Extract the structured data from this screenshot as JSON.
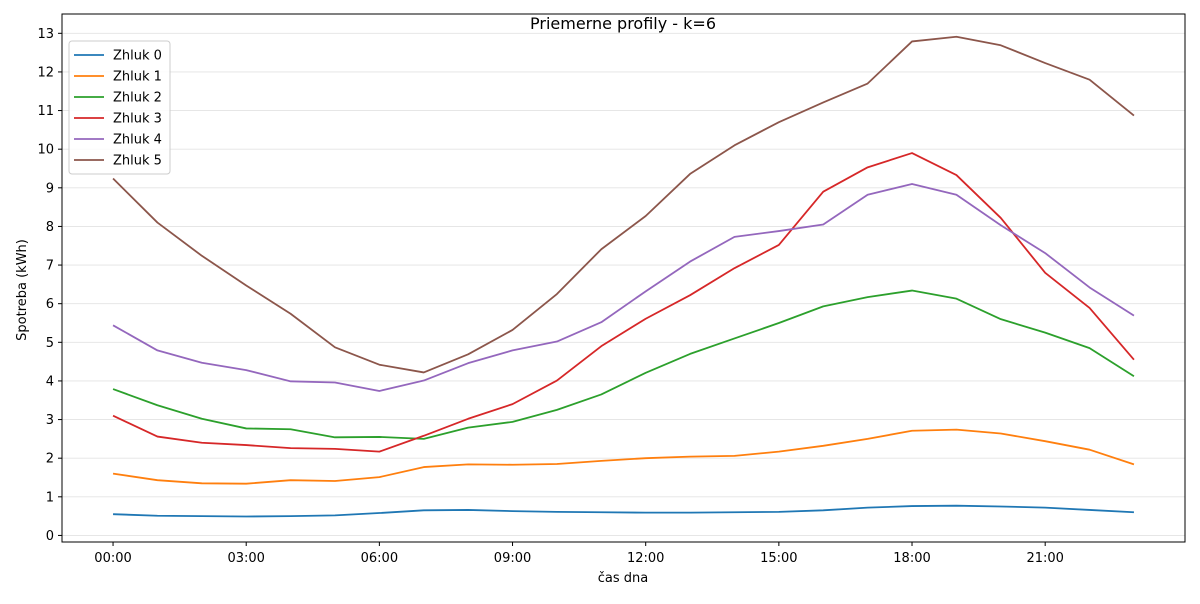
{
  "chart_data": {
    "type": "line",
    "title": "Priemerne profily - k=6",
    "xlabel": "čas dna",
    "ylabel": "Spotreba (kWh)",
    "x": [
      0,
      1,
      2,
      3,
      4,
      5,
      6,
      7,
      8,
      9,
      10,
      11,
      12,
      13,
      14,
      15,
      16,
      17,
      18,
      19,
      20,
      21,
      22,
      23
    ],
    "x_ticks": [
      {
        "value": 0,
        "label": "00:00"
      },
      {
        "value": 3,
        "label": "03:00"
      },
      {
        "value": 6,
        "label": "06:00"
      },
      {
        "value": 9,
        "label": "09:00"
      },
      {
        "value": 12,
        "label": "12:00"
      },
      {
        "value": 15,
        "label": "15:00"
      },
      {
        "value": 18,
        "label": "18:00"
      },
      {
        "value": 21,
        "label": "21:00"
      }
    ],
    "xlim": [
      -1.15,
      24.15
    ],
    "ylim": [
      -0.17,
      13.5
    ],
    "y_ticks": [
      0,
      1,
      2,
      3,
      4,
      5,
      6,
      7,
      8,
      9,
      10,
      11,
      12,
      13
    ],
    "grid": "horizontal",
    "legend_position": "top-left",
    "series": [
      {
        "name": "Zhluk 0",
        "color": "#1f77b4",
        "values": [
          0.55,
          0.51,
          0.5,
          0.49,
          0.5,
          0.52,
          0.58,
          0.65,
          0.66,
          0.63,
          0.61,
          0.6,
          0.59,
          0.59,
          0.6,
          0.61,
          0.65,
          0.72,
          0.76,
          0.77,
          0.75,
          0.72,
          0.66,
          0.6
        ]
      },
      {
        "name": "Zhluk 1",
        "color": "#ff7f0e",
        "values": [
          1.6,
          1.43,
          1.35,
          1.34,
          1.43,
          1.41,
          1.51,
          1.77,
          1.84,
          1.83,
          1.85,
          1.93,
          2.0,
          2.04,
          2.06,
          2.17,
          2.32,
          2.5,
          2.71,
          2.74,
          2.64,
          2.44,
          2.22,
          1.84
        ]
      },
      {
        "name": "Zhluk 2",
        "color": "#2ca02c",
        "values": [
          3.79,
          3.37,
          3.02,
          2.77,
          2.75,
          2.54,
          2.55,
          2.5,
          2.79,
          2.94,
          3.25,
          3.65,
          4.21,
          4.7,
          5.1,
          5.5,
          5.93,
          6.17,
          6.34,
          6.13,
          5.6,
          5.25,
          4.85,
          4.12
        ]
      },
      {
        "name": "Zhluk 3",
        "color": "#d62728",
        "values": [
          3.1,
          2.56,
          2.4,
          2.34,
          2.26,
          2.24,
          2.17,
          2.58,
          3.02,
          3.4,
          4.01,
          4.9,
          5.61,
          6.22,
          6.92,
          7.52,
          8.9,
          9.53,
          9.9,
          9.33,
          8.22,
          6.8,
          5.89,
          4.55
        ]
      },
      {
        "name": "Zhluk 4",
        "color": "#9467bd",
        "values": [
          5.44,
          4.79,
          4.47,
          4.28,
          3.99,
          3.96,
          3.74,
          4.01,
          4.46,
          4.79,
          5.02,
          5.52,
          6.32,
          7.09,
          7.73,
          7.88,
          8.05,
          8.82,
          9.1,
          8.82,
          8.03,
          7.31,
          6.42,
          5.69
        ]
      },
      {
        "name": "Zhluk 5",
        "color": "#8c564b",
        "values": [
          9.24,
          8.1,
          7.24,
          6.47,
          5.74,
          4.87,
          4.42,
          4.22,
          4.69,
          5.32,
          6.25,
          7.41,
          8.27,
          9.36,
          10.1,
          10.7,
          11.21,
          11.7,
          12.79,
          12.91,
          12.69,
          12.23,
          11.8,
          10.87
        ]
      }
    ]
  }
}
